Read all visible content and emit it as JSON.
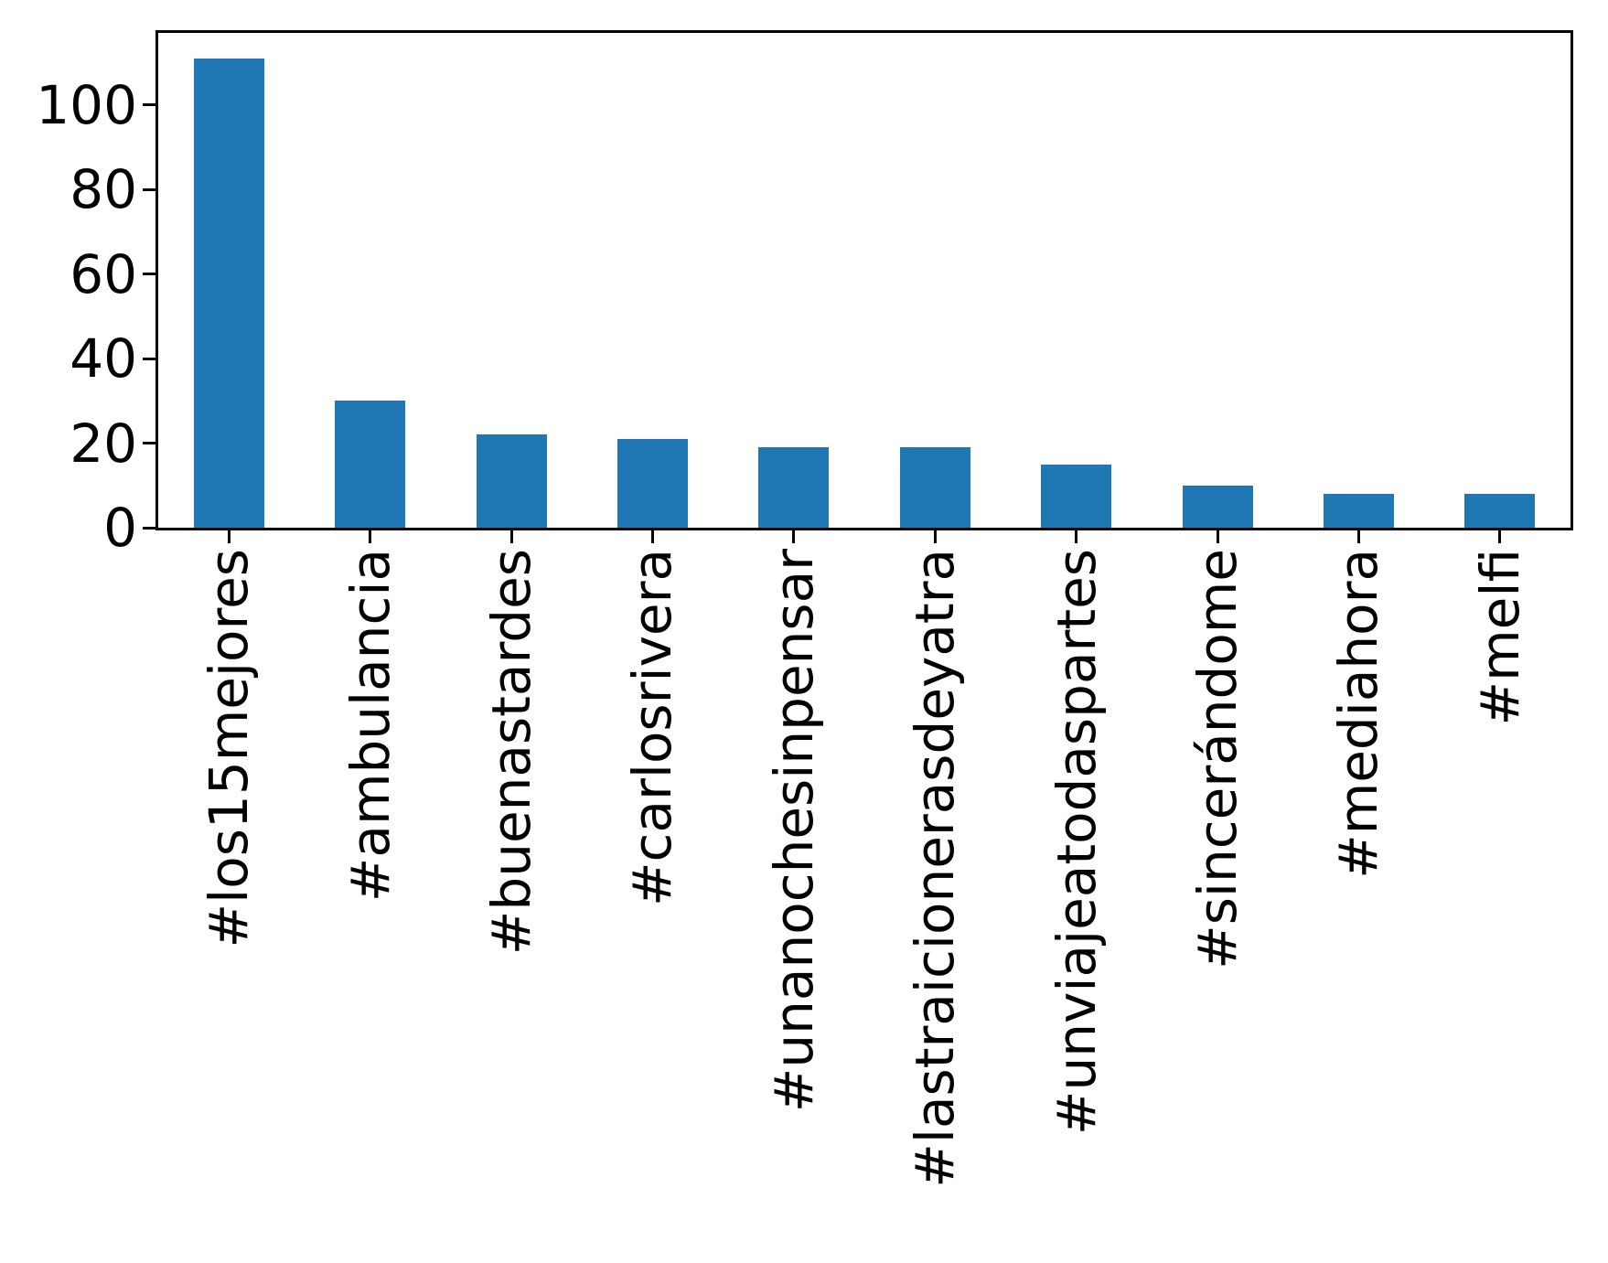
{
  "chart_data": {
    "type": "bar",
    "title": "",
    "xlabel": "",
    "ylabel": "",
    "categories": [
      "#los15mejores",
      "#ambulancia",
      "#buenastardes",
      "#carlosrivera",
      "#unanochesinpensar",
      "#lastraicionerasdeyatra",
      "#unviajeatodaspartes",
      "#sincerándome",
      "#mediahora",
      "#melfi"
    ],
    "values": [
      111,
      30,
      22,
      21,
      19,
      19,
      15,
      10,
      8,
      8
    ],
    "yticks": [
      0,
      20,
      40,
      60,
      80,
      100
    ],
    "ylim": [
      0,
      117
    ],
    "x_tick_rotation_deg": 90,
    "bar_color": "#1f77b4",
    "axis_color": "#000000",
    "text_color": "#000000",
    "background_color": "#ffffff",
    "grid": false,
    "legend": false,
    "bar_width_fraction": 0.5
  }
}
